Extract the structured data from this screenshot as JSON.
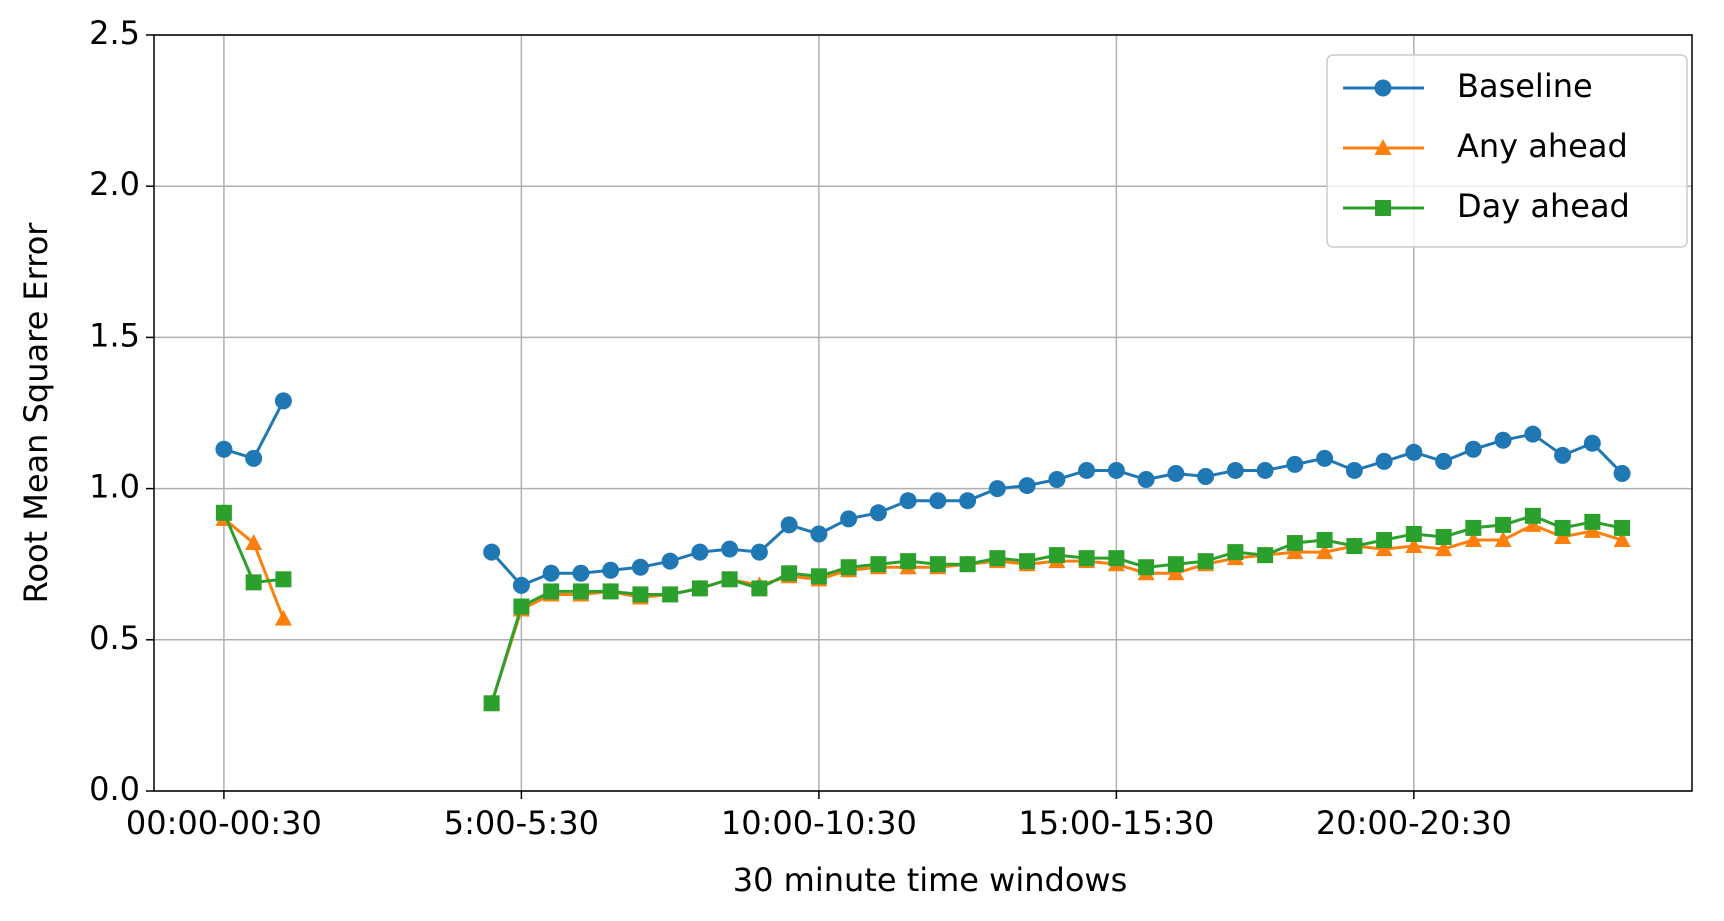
{
  "chart_data": {
    "type": "line",
    "x_label": "30 minute time windows",
    "y_label": "Root Mean Square Error",
    "categories": [
      "00:00-00:30",
      null,
      null,
      null,
      null,
      null,
      null,
      null,
      null,
      null,
      "5:00-5:30",
      null,
      null,
      null,
      null,
      null,
      null,
      null,
      null,
      null,
      "10:00-10:30",
      null,
      null,
      null,
      null,
      null,
      null,
      null,
      null,
      null,
      "15:00-15:30",
      null,
      null,
      null,
      null,
      null,
      null,
      null,
      null,
      null,
      "20:00-20:30",
      null,
      null,
      null,
      null,
      null,
      null,
      null
    ],
    "series": [
      {
        "name": "Baseline",
        "color": "#1f77b4",
        "marker": "circle",
        "values": [
          1.13,
          1.1,
          1.29,
          null,
          null,
          null,
          null,
          null,
          null,
          0.79,
          0.68,
          0.72,
          0.72,
          0.73,
          0.74,
          0.76,
          0.79,
          0.8,
          0.79,
          0.88,
          0.85,
          0.9,
          0.92,
          0.96,
          0.96,
          0.96,
          1.0,
          1.01,
          1.03,
          1.06,
          1.06,
          1.03,
          1.05,
          1.04,
          1.06,
          1.06,
          1.08,
          1.1,
          1.06,
          1.09,
          1.12,
          1.09,
          1.13,
          1.16,
          1.18,
          1.11,
          1.15,
          1.05
        ]
      },
      {
        "name": "Any ahead",
        "color": "#ff7f0e",
        "marker": "triangle",
        "values": [
          0.9,
          0.82,
          0.57,
          null,
          null,
          null,
          null,
          null,
          null,
          0.29,
          0.6,
          0.65,
          0.65,
          0.66,
          0.64,
          0.65,
          0.67,
          0.7,
          0.68,
          0.71,
          0.7,
          0.73,
          0.74,
          0.74,
          0.74,
          0.75,
          0.76,
          0.75,
          0.76,
          0.76,
          0.75,
          0.72,
          0.72,
          0.75,
          0.77,
          0.78,
          0.79,
          0.79,
          0.81,
          0.8,
          0.81,
          0.8,
          0.83,
          0.83,
          0.88,
          0.84,
          0.86,
          0.83
        ]
      },
      {
        "name": "Day ahead",
        "color": "#2ca02c",
        "marker": "square",
        "values": [
          0.92,
          0.69,
          0.7,
          null,
          null,
          null,
          null,
          null,
          null,
          0.29,
          0.61,
          0.66,
          0.66,
          0.66,
          0.65,
          0.65,
          0.67,
          0.7,
          0.67,
          0.72,
          0.71,
          0.74,
          0.75,
          0.76,
          0.75,
          0.75,
          0.77,
          0.76,
          0.78,
          0.77,
          0.77,
          0.74,
          0.75,
          0.76,
          0.79,
          0.78,
          0.82,
          0.83,
          0.81,
          0.83,
          0.85,
          0.84,
          0.87,
          0.88,
          0.91,
          0.87,
          0.89,
          0.87
        ]
      }
    ],
    "ylim": [
      0,
      2.5
    ],
    "yticks": [
      {
        "value": 0,
        "label": "0.0"
      },
      0.5,
      {
        "value": 1,
        "label": "1.0"
      },
      1.5,
      {
        "value": 2,
        "label": "2.0"
      },
      2.5
    ],
    "grid": true,
    "legend": "upper right"
  }
}
